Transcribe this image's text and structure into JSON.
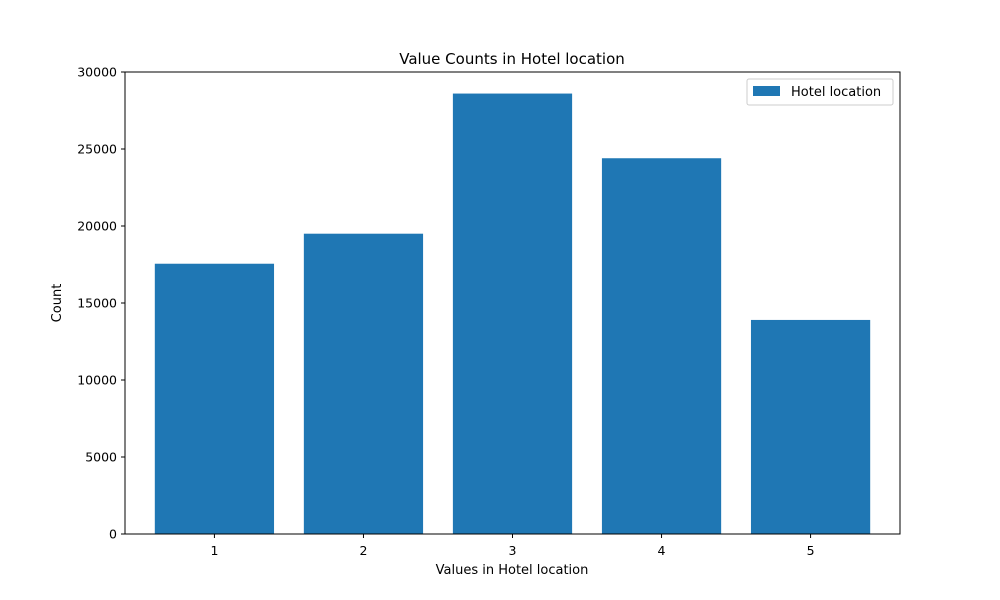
{
  "chart_data": {
    "type": "bar",
    "title": "Value Counts in Hotel location",
    "xlabel": "Values in Hotel location",
    "ylabel": "Count",
    "categories": [
      "1",
      "2",
      "3",
      "4",
      "5"
    ],
    "series": [
      {
        "name": "Hotel location",
        "values": [
          17550,
          19500,
          28600,
          24400,
          13900
        ],
        "color": "#1f77b4"
      }
    ],
    "ylim": [
      0,
      30000
    ],
    "yticks": [
      0,
      5000,
      10000,
      15000,
      20000,
      25000,
      30000
    ],
    "ytick_labels": [
      "0",
      "5000",
      "10000",
      "15000",
      "20000",
      "25000",
      "30000"
    ],
    "grid": false,
    "legend": {
      "position": "top-right"
    }
  }
}
